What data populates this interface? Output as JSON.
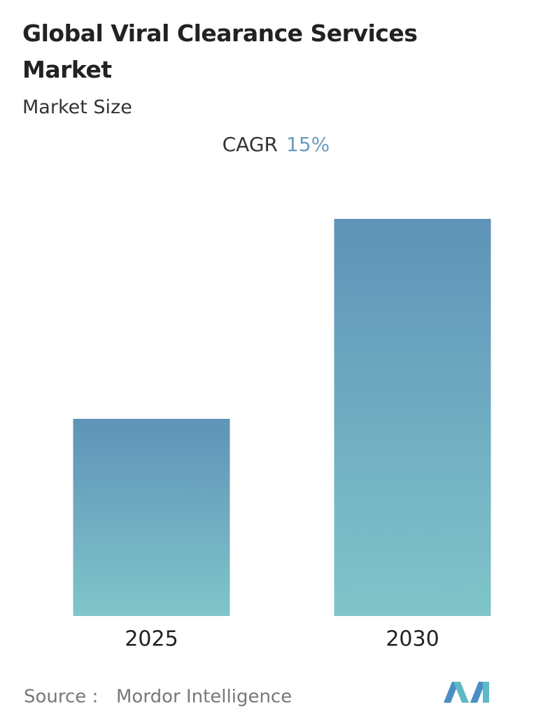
{
  "chart_data": {
    "type": "bar",
    "title": "Global Viral Clearance Services Market",
    "subtitle": "Market Size",
    "cagr_label": "CAGR",
    "cagr_value": "15%",
    "categories": [
      "2025",
      "2030"
    ],
    "values": [
      28.2,
      56.8
    ],
    "ylim": [
      0,
      60
    ],
    "gradient": [
      "#5f93b8",
      "#80c5ca"
    ],
    "source_label": "Source :",
    "source": "Mordor Intelligence"
  }
}
